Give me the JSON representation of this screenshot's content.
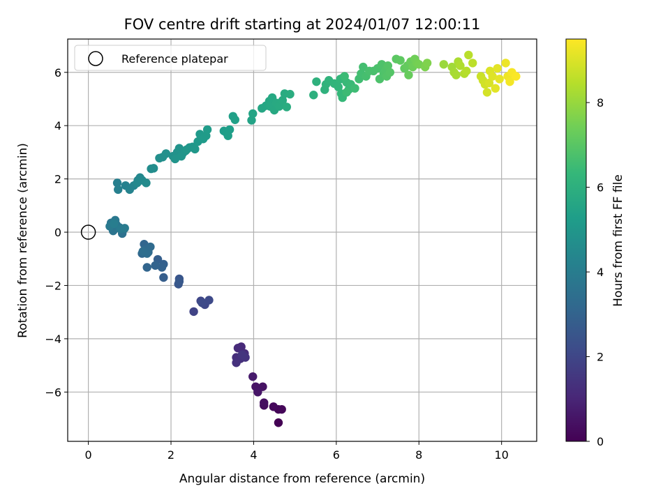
{
  "chart_data": {
    "type": "scatter",
    "title": "FOV centre drift starting at 2024/01/07 12:00:11",
    "xlabel": "Angular distance from reference (arcmin)",
    "ylabel": "Rotation from reference (arcmin)",
    "xlim": [
      -0.5,
      10.85
    ],
    "ylim": [
      -7.85,
      7.25
    ],
    "xticks": [
      0,
      2,
      4,
      6,
      8,
      10
    ],
    "yticks": [
      -6,
      -4,
      -2,
      0,
      2,
      4,
      6
    ],
    "grid": true,
    "legend": {
      "placement": "top-left",
      "entries": [
        "Reference platepar"
      ]
    },
    "reference_point": {
      "x": 0,
      "y": 0
    },
    "colormap": "viridis",
    "colorbar": {
      "label": "Hours from first FF file",
      "range": [
        0,
        9.5
      ],
      "ticks": [
        0,
        2,
        4,
        6,
        8
      ]
    },
    "points": [
      [
        4.6,
        -7.15,
        0.0
      ],
      [
        4.6,
        -6.65,
        0.1
      ],
      [
        4.68,
        -6.65,
        0.15
      ],
      [
        4.48,
        -6.55,
        0.2
      ],
      [
        4.25,
        -6.5,
        0.3
      ],
      [
        4.25,
        -6.4,
        0.35
      ],
      [
        4.22,
        -5.8,
        0.45
      ],
      [
        4.05,
        -5.8,
        0.5
      ],
      [
        4.1,
        -6.0,
        0.55
      ],
      [
        3.98,
        -5.42,
        0.7
      ],
      [
        3.7,
        -4.3,
        1.1
      ],
      [
        3.62,
        -4.35,
        1.15
      ],
      [
        3.78,
        -4.55,
        1.2
      ],
      [
        3.58,
        -4.7,
        1.25
      ],
      [
        3.68,
        -4.75,
        1.3
      ],
      [
        3.58,
        -4.9,
        1.35
      ],
      [
        3.8,
        -4.7,
        1.4
      ],
      [
        3.72,
        -4.6,
        1.45
      ],
      [
        2.55,
        -2.98,
        1.9
      ],
      [
        2.72,
        -2.58,
        2.0
      ],
      [
        2.82,
        -2.72,
        2.05
      ],
      [
        2.92,
        -2.55,
        2.1
      ],
      [
        2.75,
        -2.65,
        2.15
      ],
      [
        2.2,
        -1.75,
        2.5
      ],
      [
        2.18,
        -1.95,
        2.55
      ],
      [
        2.2,
        -1.85,
        2.6
      ],
      [
        1.82,
        -1.7,
        2.8
      ],
      [
        1.68,
        -1.02,
        2.85
      ],
      [
        1.82,
        -1.2,
        2.9
      ],
      [
        1.78,
        -1.32,
        2.95
      ],
      [
        1.62,
        -1.25,
        3.0
      ],
      [
        1.42,
        -1.32,
        3.05
      ],
      [
        1.35,
        -0.45,
        3.1
      ],
      [
        1.3,
        -0.8,
        3.15
      ],
      [
        1.45,
        -0.75,
        3.2
      ],
      [
        1.38,
        -0.65,
        3.25
      ],
      [
        1.5,
        -0.55,
        3.3
      ],
      [
        1.42,
        -0.8,
        3.35
      ],
      [
        1.32,
        -0.72,
        3.4
      ],
      [
        0.85,
        0.1,
        3.5
      ],
      [
        0.82,
        -0.05,
        3.55
      ],
      [
        0.75,
        0.18,
        3.6
      ],
      [
        0.6,
        0.05,
        3.65
      ],
      [
        0.68,
        0.28,
        3.7
      ],
      [
        0.55,
        0.35,
        3.75
      ],
      [
        0.65,
        0.45,
        3.8
      ],
      [
        0.52,
        0.22,
        3.85
      ],
      [
        0.78,
        0.12,
        3.9
      ],
      [
        0.88,
        0.15,
        3.95
      ],
      [
        0.62,
        0.32,
        4.0
      ],
      [
        0.7,
        1.85,
        4.1
      ],
      [
        0.72,
        1.6,
        4.15
      ],
      [
        0.9,
        1.75,
        4.2
      ],
      [
        1.0,
        1.6,
        4.25
      ],
      [
        1.1,
        1.75,
        4.3
      ],
      [
        1.2,
        1.95,
        4.35
      ],
      [
        1.25,
        2.05,
        4.4
      ],
      [
        1.18,
        1.85,
        4.45
      ],
      [
        1.3,
        1.95,
        4.5
      ],
      [
        1.4,
        1.85,
        4.55
      ],
      [
        1.52,
        2.38,
        4.6
      ],
      [
        1.58,
        2.4,
        4.65
      ],
      [
        1.72,
        2.78,
        4.7
      ],
      [
        1.8,
        2.82,
        4.72
      ],
      [
        1.88,
        2.95,
        4.75
      ],
      [
        2.05,
        2.85,
        4.8
      ],
      [
        2.15,
        3.0,
        4.82
      ],
      [
        2.2,
        3.15,
        4.85
      ],
      [
        2.28,
        2.95,
        4.88
      ],
      [
        2.1,
        2.75,
        4.9
      ],
      [
        2.25,
        2.85,
        4.92
      ],
      [
        2.35,
        3.05,
        4.95
      ],
      [
        2.45,
        3.18,
        4.98
      ],
      [
        2.38,
        3.1,
        5.0
      ],
      [
        2.52,
        3.2,
        5.02
      ],
      [
        2.58,
        3.12,
        5.05
      ],
      [
        2.65,
        3.4,
        5.1
      ],
      [
        2.7,
        3.68,
        5.12
      ],
      [
        2.78,
        3.5,
        5.15
      ],
      [
        2.85,
        3.62,
        5.18
      ],
      [
        2.88,
        3.85,
        5.2
      ],
      [
        3.28,
        3.8,
        5.25
      ],
      [
        3.35,
        3.72,
        5.28
      ],
      [
        3.42,
        3.85,
        5.3
      ],
      [
        3.38,
        3.62,
        5.32
      ],
      [
        3.5,
        4.35,
        5.35
      ],
      [
        3.55,
        4.22,
        5.38
      ],
      [
        3.95,
        4.2,
        5.5
      ],
      [
        3.98,
        4.45,
        5.52
      ],
      [
        4.2,
        4.65,
        5.6
      ],
      [
        4.3,
        4.75,
        5.62
      ],
      [
        4.38,
        4.92,
        5.65
      ],
      [
        4.45,
        5.05,
        5.68
      ],
      [
        4.4,
        4.72,
        5.7
      ],
      [
        4.5,
        4.58,
        5.72
      ],
      [
        4.55,
        4.85,
        5.75
      ],
      [
        4.62,
        4.72,
        5.78
      ],
      [
        4.7,
        4.95,
        5.8
      ],
      [
        4.75,
        5.2,
        5.82
      ],
      [
        4.8,
        4.7,
        5.85
      ],
      [
        4.88,
        5.18,
        5.88
      ],
      [
        5.45,
        5.15,
        6.0
      ],
      [
        5.52,
        5.65,
        6.05
      ],
      [
        5.72,
        5.35,
        6.1
      ],
      [
        5.75,
        5.55,
        6.12
      ],
      [
        5.82,
        5.7,
        6.15
      ],
      [
        5.95,
        5.58,
        6.2
      ],
      [
        6.05,
        5.45,
        6.22
      ],
      [
        6.1,
        5.75,
        6.25
      ],
      [
        6.18,
        5.82,
        6.3
      ],
      [
        6.12,
        5.2,
        6.32
      ],
      [
        6.15,
        5.05,
        6.35
      ],
      [
        6.25,
        5.62,
        6.38
      ],
      [
        6.3,
        5.35,
        6.4
      ],
      [
        6.35,
        5.55,
        6.42
      ],
      [
        6.2,
        5.85,
        6.45
      ],
      [
        6.25,
        5.25,
        6.48
      ],
      [
        6.45,
        5.4,
        6.5
      ],
      [
        6.55,
        5.75,
        6.55
      ],
      [
        6.6,
        5.95,
        6.6
      ],
      [
        6.65,
        6.2,
        6.62
      ],
      [
        6.72,
        5.85,
        6.65
      ],
      [
        6.8,
        6.05,
        6.7
      ],
      [
        6.9,
        6.05,
        6.72
      ],
      [
        7.0,
        6.15,
        6.75
      ],
      [
        7.05,
        5.75,
        6.78
      ],
      [
        7.1,
        6.3,
        6.8
      ],
      [
        7.15,
        5.95,
        6.82
      ],
      [
        7.2,
        6.1,
        6.85
      ],
      [
        7.22,
        5.85,
        6.88
      ],
      [
        7.25,
        6.25,
        6.9
      ],
      [
        7.3,
        6.0,
        6.92
      ],
      [
        7.45,
        6.5,
        7.05
      ],
      [
        7.55,
        6.45,
        7.1
      ],
      [
        7.65,
        6.15,
        7.15
      ],
      [
        7.72,
        6.25,
        7.2
      ],
      [
        7.75,
        5.9,
        7.25
      ],
      [
        7.8,
        6.4,
        7.3
      ],
      [
        7.85,
        6.2,
        7.35
      ],
      [
        7.9,
        6.5,
        7.4
      ],
      [
        7.95,
        6.35,
        7.45
      ],
      [
        8.0,
        6.3,
        7.5
      ],
      [
        8.15,
        6.2,
        7.6
      ],
      [
        8.2,
        6.35,
        7.65
      ],
      [
        8.6,
        6.3,
        8.05
      ],
      [
        8.8,
        6.2,
        8.15
      ],
      [
        8.85,
        6.0,
        8.2
      ],
      [
        8.9,
        5.9,
        8.25
      ],
      [
        8.95,
        6.4,
        8.3
      ],
      [
        9.0,
        6.25,
        8.35
      ],
      [
        9.1,
        5.95,
        8.4
      ],
      [
        9.15,
        6.05,
        8.45
      ],
      [
        9.2,
        6.65,
        8.5
      ],
      [
        9.3,
        6.35,
        8.55
      ],
      [
        9.5,
        5.85,
        8.75
      ],
      [
        9.55,
        5.7,
        8.8
      ],
      [
        9.6,
        5.55,
        8.85
      ],
      [
        9.65,
        5.25,
        8.9
      ],
      [
        9.7,
        5.6,
        8.95
      ],
      [
        9.72,
        6.05,
        9.0
      ],
      [
        9.78,
        5.85,
        9.05
      ],
      [
        9.85,
        5.4,
        9.1
      ],
      [
        9.9,
        6.15,
        9.12
      ],
      [
        9.95,
        5.75,
        9.15
      ],
      [
        10.1,
        6.35,
        9.25
      ],
      [
        10.15,
        5.85,
        9.3
      ],
      [
        10.2,
        5.65,
        9.35
      ],
      [
        10.25,
        6.0,
        9.4
      ],
      [
        10.35,
        5.85,
        9.45
      ]
    ]
  }
}
